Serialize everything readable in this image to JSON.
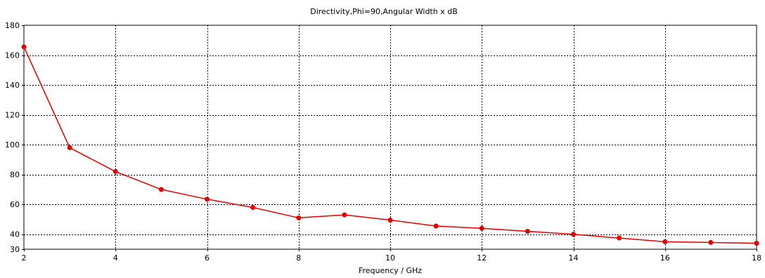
{
  "chart_data": {
    "type": "line",
    "title": "Directivity,Phi=90,Angular Width x dB",
    "xlabel": "Frequency / GHz",
    "ylabel": "",
    "xlim": [
      2,
      18
    ],
    "ylim": [
      30,
      180
    ],
    "x_ticks": [
      2,
      4,
      6,
      8,
      10,
      12,
      14,
      16,
      18
    ],
    "y_ticks": [
      30,
      40,
      60,
      80,
      100,
      120,
      140,
      160,
      180
    ],
    "grid": true,
    "legend": "none",
    "series": [
      {
        "color": "#e00000",
        "x": [
          2,
          3,
          4,
          5,
          6,
          7,
          8,
          9,
          10,
          11,
          12,
          13,
          14,
          15,
          16,
          17,
          18
        ],
        "values": [
          165.5,
          98,
          82,
          70,
          63.5,
          58,
          51,
          53,
          49.5,
          45.5,
          44,
          42,
          40,
          37.5,
          35,
          34.5,
          34
        ]
      }
    ]
  }
}
